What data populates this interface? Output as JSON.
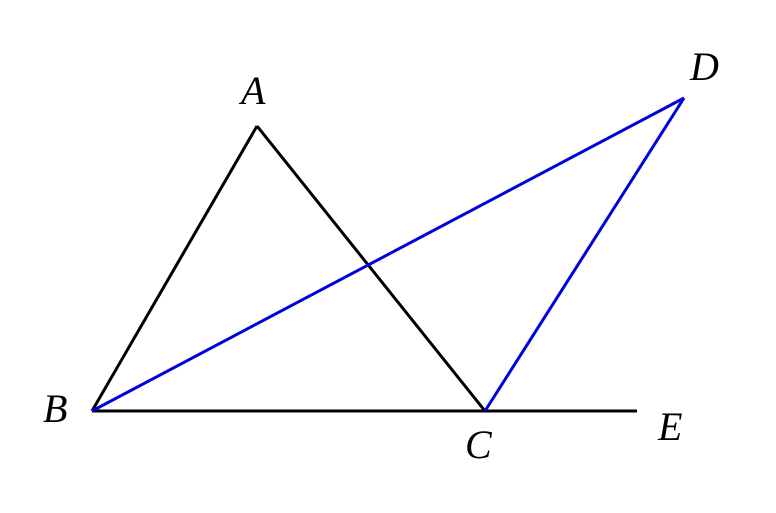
{
  "points": [
    {
      "label": "A"
    },
    {
      "label": "B"
    },
    {
      "label": "C"
    },
    {
      "label": "D"
    },
    {
      "label": "E"
    }
  ]
}
